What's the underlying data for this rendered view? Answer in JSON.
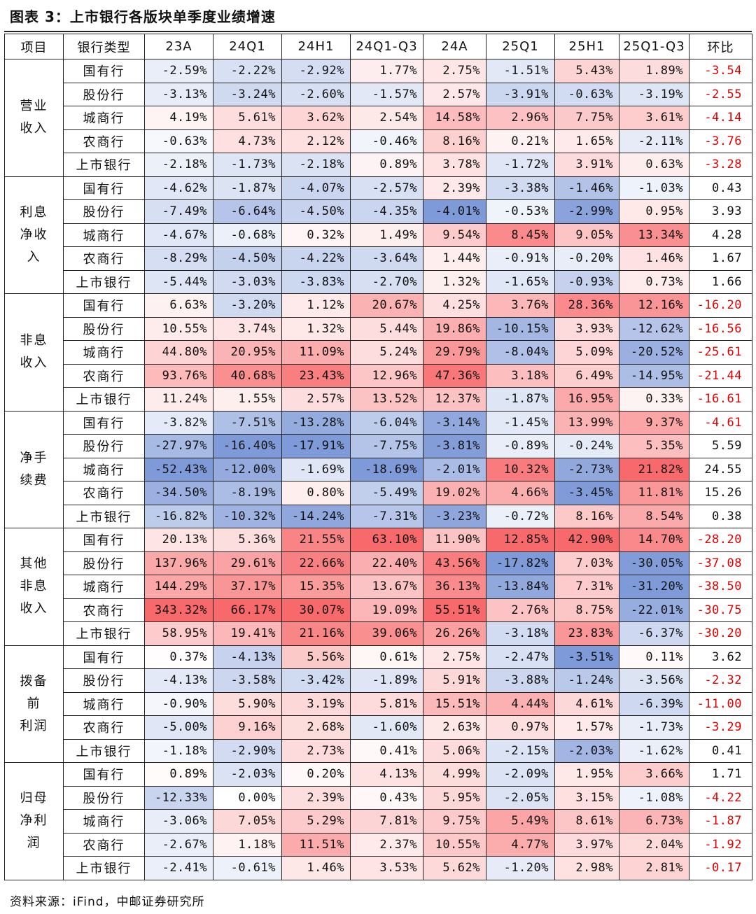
{
  "title": "图表 3：上市银行各版块单季度业绩增速",
  "source": "资料来源：iFind，中邮证券研究所",
  "headers": [
    "项目",
    "银行类型",
    "23A",
    "24Q1",
    "24H1",
    "24Q1-Q3",
    "24A",
    "25Q1",
    "25H1",
    "25Q1-Q3",
    "环比"
  ],
  "groups": [
    {
      "label_lines": [
        "营业",
        "收入"
      ],
      "rows": [
        {
          "bank": "国有行",
          "values": [
            "-2.59%",
            "-2.22%",
            "-2.92%",
            "1.77%",
            "2.75%",
            "-1.51%",
            "5.43%",
            "1.89%"
          ],
          "hb": "-3.54"
        },
        {
          "bank": "股份行",
          "values": [
            "-3.13%",
            "-3.24%",
            "-2.60%",
            "-1.57%",
            "2.57%",
            "-3.91%",
            "-0.63%",
            "-3.19%"
          ],
          "hb": "-2.55"
        },
        {
          "bank": "城商行",
          "values": [
            "4.19%",
            "5.61%",
            "3.62%",
            "2.54%",
            "14.58%",
            "2.96%",
            "7.75%",
            "3.61%"
          ],
          "hb": "-4.14"
        },
        {
          "bank": "农商行",
          "values": [
            "-0.63%",
            "4.73%",
            "2.12%",
            "-0.46%",
            "8.16%",
            "0.21%",
            "1.65%",
            "-2.11%"
          ],
          "hb": "-3.76"
        },
        {
          "bank": "上市银行",
          "values": [
            "-2.18%",
            "-1.73%",
            "-2.18%",
            "0.89%",
            "3.78%",
            "-1.72%",
            "3.91%",
            "0.63%"
          ],
          "hb": "-3.28"
        }
      ]
    },
    {
      "label_lines": [
        "利息",
        "净收",
        "入"
      ],
      "rows": [
        {
          "bank": "国有行",
          "values": [
            "-4.62%",
            "-1.87%",
            "-4.07%",
            "-2.57%",
            "2.39%",
            "-3.38%",
            "-1.46%",
            "-1.03%"
          ],
          "hb": "0.43"
        },
        {
          "bank": "股份行",
          "values": [
            "-7.49%",
            "-6.64%",
            "-4.50%",
            "-4.35%",
            "-4.01%",
            "-0.53%",
            "-2.99%",
            "0.95%"
          ],
          "hb": "3.93"
        },
        {
          "bank": "城商行",
          "values": [
            "-4.67%",
            "-0.68%",
            "0.32%",
            "1.49%",
            "9.54%",
            "8.45%",
            "9.05%",
            "13.34%"
          ],
          "hb": "4.28"
        },
        {
          "bank": "农商行",
          "values": [
            "-8.29%",
            "-4.50%",
            "-4.22%",
            "-3.64%",
            "1.44%",
            "-0.91%",
            "-0.20%",
            "1.46%"
          ],
          "hb": "1.67"
        },
        {
          "bank": "上市银行",
          "values": [
            "-5.44%",
            "-3.03%",
            "-3.83%",
            "-2.70%",
            "1.32%",
            "-1.65%",
            "-0.93%",
            "0.73%"
          ],
          "hb": "1.66"
        }
      ]
    },
    {
      "label_lines": [
        "非息",
        "收入"
      ],
      "rows": [
        {
          "bank": "国有行",
          "values": [
            "6.63%",
            "-3.20%",
            "1.12%",
            "20.67%",
            "4.25%",
            "3.76%",
            "28.36%",
            "12.16%"
          ],
          "hb": "-16.20"
        },
        {
          "bank": "股份行",
          "values": [
            "10.55%",
            "3.74%",
            "1.32%",
            "5.44%",
            "19.86%",
            "-10.15%",
            "3.93%",
            "-12.62%"
          ],
          "hb": "-16.56"
        },
        {
          "bank": "城商行",
          "values": [
            "44.80%",
            "20.95%",
            "11.09%",
            "5.24%",
            "29.79%",
            "-8.04%",
            "5.09%",
            "-20.52%"
          ],
          "hb": "-25.61"
        },
        {
          "bank": "农商行",
          "values": [
            "93.76%",
            "40.68%",
            "23.43%",
            "12.96%",
            "47.36%",
            "3.18%",
            "6.49%",
            "-14.95%"
          ],
          "hb": "-21.44"
        },
        {
          "bank": "上市银行",
          "values": [
            "11.24%",
            "1.55%",
            "2.57%",
            "13.52%",
            "12.37%",
            "-1.87%",
            "16.95%",
            "0.33%"
          ],
          "hb": "-16.61"
        }
      ]
    },
    {
      "label_lines": [
        "净手",
        "续费"
      ],
      "rows": [
        {
          "bank": "国有行",
          "values": [
            "-3.82%",
            "-7.51%",
            "-13.28%",
            "-6.04%",
            "-3.14%",
            "-1.45%",
            "13.99%",
            "9.37%"
          ],
          "hb": "-4.61"
        },
        {
          "bank": "股份行",
          "values": [
            "-27.97%",
            "-16.40%",
            "-17.91%",
            "-7.75%",
            "-3.81%",
            "-0.89%",
            "-0.24%",
            "5.35%"
          ],
          "hb": "5.59"
        },
        {
          "bank": "城商行",
          "values": [
            "-52.43%",
            "-12.00%",
            "-1.69%",
            "-18.69%",
            "-2.01%",
            "10.32%",
            "-2.73%",
            "21.82%"
          ],
          "hb": "24.55"
        },
        {
          "bank": "农商行",
          "values": [
            "-34.50%",
            "-8.19%",
            "0.80%",
            "-5.49%",
            "19.02%",
            "4.66%",
            "-3.45%",
            "11.81%"
          ],
          "hb": "15.26"
        },
        {
          "bank": "上市银行",
          "values": [
            "-16.82%",
            "-10.32%",
            "-14.24%",
            "-7.31%",
            "-3.23%",
            "-0.72%",
            "8.16%",
            "8.54%"
          ],
          "hb": "0.38"
        }
      ]
    },
    {
      "label_lines": [
        "其他",
        "非息",
        "收入"
      ],
      "rows": [
        {
          "bank": "国有行",
          "values": [
            "20.13%",
            "5.36%",
            "21.55%",
            "63.10%",
            "11.90%",
            "12.85%",
            "42.90%",
            "14.70%"
          ],
          "hb": "-28.20"
        },
        {
          "bank": "股份行",
          "values": [
            "137.96%",
            "29.61%",
            "22.66%",
            "22.40%",
            "43.56%",
            "-17.82%",
            "7.03%",
            "-30.05%"
          ],
          "hb": "-37.08"
        },
        {
          "bank": "城商行",
          "values": [
            "144.29%",
            "37.17%",
            "15.35%",
            "13.67%",
            "36.13%",
            "-13.84%",
            "7.31%",
            "-31.20%"
          ],
          "hb": "-38.50"
        },
        {
          "bank": "农商行",
          "values": [
            "343.32%",
            "66.17%",
            "30.07%",
            "19.09%",
            "55.51%",
            "2.76%",
            "8.75%",
            "-22.01%"
          ],
          "hb": "-30.75"
        },
        {
          "bank": "上市银行",
          "values": [
            "58.95%",
            "19.41%",
            "21.16%",
            "39.06%",
            "26.26%",
            "-3.18%",
            "23.83%",
            "-6.37%"
          ],
          "hb": "-30.20"
        }
      ]
    },
    {
      "label_lines": [
        "拨备",
        "前",
        "利润"
      ],
      "rows": [
        {
          "bank": "国有行",
          "values": [
            "0.37%",
            "-4.13%",
            "5.56%",
            "0.61%",
            "2.75%",
            "-2.47%",
            "-3.51%",
            "0.11%"
          ],
          "hb": "3.62"
        },
        {
          "bank": "股份行",
          "values": [
            "-4.13%",
            "-3.58%",
            "-3.42%",
            "-1.89%",
            "5.91%",
            "-3.88%",
            "-1.24%",
            "-3.56%"
          ],
          "hb": "-2.32"
        },
        {
          "bank": "城商行",
          "values": [
            "-0.90%",
            "5.90%",
            "3.19%",
            "5.81%",
            "15.51%",
            "4.44%",
            "4.61%",
            "-6.39%"
          ],
          "hb": "-11.00"
        },
        {
          "bank": "农商行",
          "values": [
            "-5.00%",
            "9.16%",
            "2.68%",
            "-1.60%",
            "2.63%",
            "0.97%",
            "1.57%",
            "-1.73%"
          ],
          "hb": "-3.29"
        },
        {
          "bank": "上市银行",
          "values": [
            "-1.18%",
            "-2.90%",
            "2.73%",
            "0.41%",
            "5.06%",
            "-2.15%",
            "-2.03%",
            "-1.62%"
          ],
          "hb": "0.41"
        }
      ]
    },
    {
      "label_lines": [
        "归母",
        "净利",
        "润"
      ],
      "rows": [
        {
          "bank": "国有行",
          "values": [
            "0.89%",
            "-2.03%",
            "0.20%",
            "4.13%",
            "4.99%",
            "-2.09%",
            "1.95%",
            "3.66%"
          ],
          "hb": "1.71"
        },
        {
          "bank": "股份行",
          "values": [
            "-12.33%",
            "0.00%",
            "2.39%",
            "0.43%",
            "5.95%",
            "-2.05%",
            "3.15%",
            "-1.08%"
          ],
          "hb": "-4.22"
        },
        {
          "bank": "城商行",
          "values": [
            "-3.06%",
            "7.05%",
            "5.29%",
            "7.81%",
            "9.75%",
            "5.49%",
            "8.61%",
            "6.73%"
          ],
          "hb": "-1.87"
        },
        {
          "bank": "农商行",
          "values": [
            "-2.67%",
            "1.18%",
            "11.51%",
            "2.37%",
            "10.55%",
            "4.77%",
            "3.97%",
            "2.04%"
          ],
          "hb": "-1.92"
        },
        {
          "bank": "上市银行",
          "values": [
            "-2.41%",
            "-0.61%",
            "1.46%",
            "3.53%",
            "5.62%",
            "-1.20%",
            "2.98%",
            "2.81%"
          ],
          "hb": "-0.17"
        }
      ]
    }
  ],
  "colors": {
    "negative_max": "#7f9ad8",
    "positive_max": "#f8696b",
    "neutral": "#ffffff",
    "hb_negative_text": "#e00000"
  }
}
